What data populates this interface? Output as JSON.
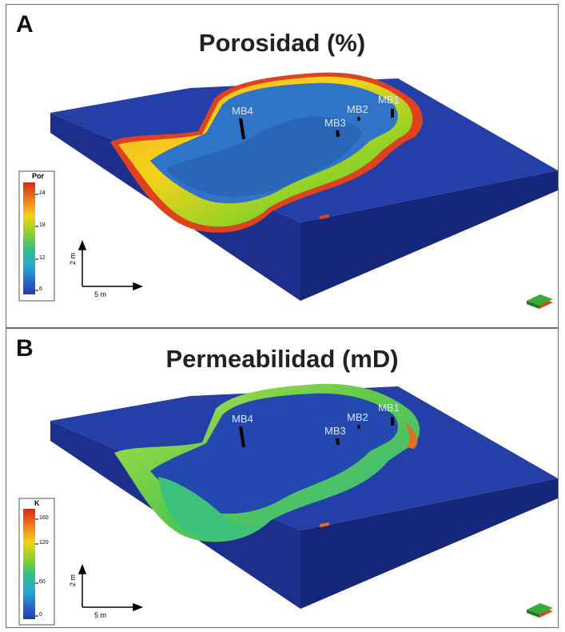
{
  "panels": [
    {
      "letter": "A",
      "title": "Porosidad (%)",
      "colorbar": {
        "label": "Por",
        "ticks": [
          "24",
          "18",
          "12",
          "6"
        ]
      },
      "wells": [
        "MB4",
        "MB3",
        "MB2",
        "MB1"
      ],
      "scale": {
        "vertical": "2 m",
        "horizontal": "5 m"
      }
    },
    {
      "letter": "B",
      "title": "Permeabilidad (mD)",
      "colorbar": {
        "label": "K",
        "ticks": [
          "160",
          "120",
          "60",
          "0"
        ]
      },
      "wells": [
        "MB4",
        "MB3",
        "MB2",
        "MB1"
      ],
      "scale": {
        "vertical": "2 m",
        "horizontal": "5 m"
      }
    }
  ],
  "colors": {
    "block_top": "#2440a8",
    "block_side_front": "#1c2f8c",
    "block_side_right": "#16267a",
    "pit_fill_porosity": "#2f74c6",
    "pit_fill_permeability": "#2348b0",
    "rim_porosity": [
      "#e53a1e",
      "#f08a1e",
      "#f4d01e",
      "#8acc2a",
      "#2eb7b8"
    ],
    "rim_permeability": [
      "#2bb54a",
      "#70d048",
      "#b9e24a",
      "#3cc2c2",
      "#e0a040"
    ],
    "colormap": [
      "#d62a1a",
      "#f07a1a",
      "#f4d21a",
      "#8ed228",
      "#2ec08a",
      "#27a8d0",
      "#2563c9",
      "#263aa8"
    ]
  }
}
